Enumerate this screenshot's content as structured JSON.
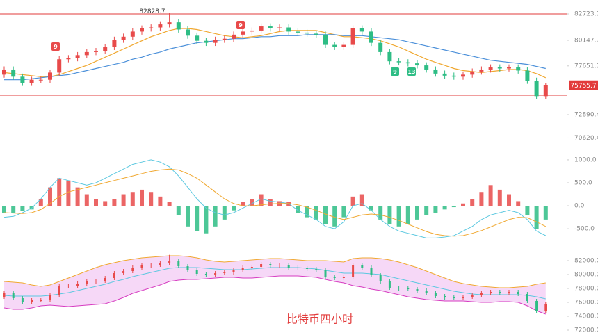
{
  "chart_data": [
    {
      "type": "candlestick",
      "up_color": "#e84a4a",
      "down_color": "#2ebd85",
      "open": [
        76800,
        77300,
        76600,
        76000,
        76300,
        76300,
        77000,
        78300,
        78400,
        78700,
        79000,
        79100,
        79500,
        80200,
        80500,
        81000,
        81300,
        81400,
        81700,
        81900,
        81200,
        80600,
        80100,
        79900,
        80200,
        80300,
        80700,
        81000,
        81100,
        81500,
        81300,
        81400,
        81000,
        80900,
        80800,
        80700,
        79700,
        79500,
        79700,
        81300,
        81000,
        79900,
        79000,
        78100,
        78000,
        77900,
        77700,
        77300,
        76900,
        76700,
        76600,
        76800,
        77100,
        77300,
        77500,
        77400,
        77500,
        77200,
        76200,
        74700
      ],
      "high": [
        77600,
        77600,
        76900,
        76600,
        76600,
        77300,
        78600,
        78700,
        79000,
        79300,
        79400,
        79800,
        80500,
        80800,
        81300,
        81600,
        81700,
        82000,
        82828.7,
        82200,
        81500,
        80900,
        80400,
        80500,
        80600,
        81000,
        81300,
        81400,
        81800,
        81800,
        81700,
        81700,
        81300,
        81200,
        81100,
        81000,
        80000,
        80000,
        81600,
        81600,
        81300,
        80200,
        79300,
        78400,
        78300,
        78200,
        78000,
        77600,
        77200,
        77000,
        77100,
        77400,
        77600,
        77800,
        77800,
        77800,
        77800,
        77500,
        76500,
        76000
      ],
      "low": [
        76500,
        76300,
        75700,
        75700,
        76000,
        76000,
        76700,
        78000,
        78100,
        78400,
        78700,
        78800,
        79200,
        79900,
        80200,
        80700,
        81000,
        81100,
        81400,
        80900,
        80300,
        79800,
        79600,
        79600,
        79900,
        80000,
        80400,
        80700,
        80800,
        81000,
        81000,
        80700,
        80600,
        80500,
        80400,
        79400,
        79200,
        79200,
        79400,
        80700,
        79600,
        78700,
        77800,
        77700,
        77600,
        77400,
        77000,
        76600,
        76400,
        76300,
        76300,
        76500,
        76800,
        77000,
        77100,
        77100,
        76900,
        75900,
        74400,
        74400
      ],
      "close": [
        77300,
        76600,
        76000,
        76300,
        76300,
        77000,
        78300,
        78400,
        78700,
        79000,
        79100,
        79500,
        80200,
        80500,
        81000,
        81300,
        81400,
        81700,
        81900,
        81200,
        80600,
        80100,
        79900,
        80200,
        80300,
        80700,
        81000,
        81100,
        81500,
        81300,
        81400,
        81000,
        80900,
        80800,
        80700,
        79700,
        79500,
        79700,
        81300,
        81000,
        79900,
        79000,
        78100,
        78000,
        77900,
        77700,
        77300,
        76900,
        76700,
        76600,
        76800,
        77100,
        77300,
        77500,
        77400,
        77500,
        77200,
        76200,
        74700,
        75755.7
      ],
      "lines": [
        {
          "color": "#f0a830",
          "values": [
            77000,
            76900,
            76800,
            76700,
            76600,
            76600,
            76800,
            77100,
            77400,
            77700,
            78100,
            78500,
            78900,
            79300,
            79700,
            80100,
            80500,
            80800,
            81100,
            81300,
            81300,
            81200,
            81000,
            80800,
            80600,
            80500,
            80400,
            80500,
            80600,
            80800,
            81000,
            81100,
            81100,
            81100,
            81100,
            80900,
            80700,
            80500,
            80500,
            80400,
            80300,
            80100,
            79800,
            79500,
            79100,
            78700,
            78300,
            78000,
            77700,
            77400,
            77200,
            77100,
            77000,
            77100,
            77200,
            77300,
            77300,
            77200,
            76900,
            76500
          ]
        },
        {
          "color": "#4a8fd9",
          "values": [
            76300,
            76300,
            76300,
            76400,
            76500,
            76600,
            76700,
            76800,
            77000,
            77200,
            77400,
            77600,
            77800,
            78000,
            78300,
            78500,
            78800,
            79000,
            79300,
            79500,
            79700,
            79900,
            80000,
            80100,
            80200,
            80300,
            80300,
            80400,
            80500,
            80500,
            80600,
            80600,
            80600,
            80700,
            80700,
            80700,
            80700,
            80600,
            80600,
            80600,
            80500,
            80400,
            80300,
            80200,
            80000,
            79800,
            79600,
            79400,
            79200,
            79000,
            78800,
            78600,
            78400,
            78200,
            78100,
            78000,
            77900,
            77800,
            77600,
            77400
          ]
        }
      ],
      "hlines": [
        {
          "value": 82723.7,
          "color": "#e23b3b"
        },
        {
          "value": 74790,
          "color": "#e23b3b"
        }
      ],
      "markers": [
        {
          "text": "9",
          "color": "#e84a4a"
        },
        {
          "text": "9",
          "color": "#e84a4a"
        },
        {
          "text": "9",
          "color": "#2ebd85"
        },
        {
          "text": "13",
          "color": "#2ebd85"
        }
      ],
      "ylim": [
        69500,
        84080
      ],
      "yticks": [
        82723.7,
        80147.7,
        77651.7,
        72890.4,
        70620.4
      ]
    },
    {
      "type": "macd",
      "up_color": "#e84a4a",
      "down_color": "#2ebd85",
      "histogram": [
        -150,
        -150,
        -120,
        -80,
        150,
        400,
        600,
        550,
        400,
        250,
        150,
        100,
        150,
        250,
        300,
        350,
        300,
        200,
        80,
        -200,
        -450,
        -550,
        -600,
        -450,
        -300,
        -100,
        80,
        150,
        250,
        150,
        100,
        80,
        -150,
        -250,
        -300,
        -400,
        -450,
        -250,
        200,
        250,
        -100,
        -300,
        -400,
        -450,
        -400,
        -300,
        -200,
        -150,
        -80,
        -30,
        50,
        150,
        300,
        450,
        350,
        250,
        100,
        -200,
        -500,
        -300
      ],
      "lines": [
        {
          "color": "#5bc8e0",
          "values": [
            -250,
            -230,
            -150,
            -50,
            150,
            400,
            600,
            550,
            500,
            450,
            500,
            600,
            700,
            800,
            900,
            950,
            1000,
            950,
            850,
            650,
            400,
            150,
            -50,
            -150,
            -200,
            -150,
            -50,
            50,
            150,
            100,
            80,
            50,
            -100,
            -200,
            -300,
            -450,
            -500,
            -350,
            0,
            50,
            -100,
            -300,
            -450,
            -550,
            -600,
            -650,
            -700,
            -700,
            -680,
            -650,
            -550,
            -450,
            -300,
            -200,
            -150,
            -100,
            -150,
            -300,
            -550,
            -650
          ]
        },
        {
          "color": "#f0a830",
          "values": [
            -150,
            -160,
            -170,
            -150,
            -80,
            50,
            200,
            300,
            350,
            400,
            450,
            500,
            550,
            600,
            650,
            700,
            750,
            780,
            800,
            780,
            700,
            600,
            450,
            300,
            150,
            50,
            0,
            0,
            20,
            40,
            50,
            50,
            20,
            -30,
            -100,
            -180,
            -250,
            -300,
            -250,
            -200,
            -180,
            -200,
            -250,
            -320,
            -400,
            -480,
            -560,
            -620,
            -650,
            -660,
            -650,
            -600,
            -540,
            -460,
            -380,
            -300,
            -250,
            -260,
            -350,
            -450
          ]
        }
      ],
      "ylim": [
        -740,
        1120
      ],
      "yticks": [
        {
          "value": 1000,
          "label": "1000.0"
        },
        {
          "value": 500,
          "label": "500.0"
        },
        {
          "value": 0,
          "label": "0.0"
        },
        {
          "value": -500,
          "label": "-500.0"
        }
      ]
    },
    {
      "type": "bands",
      "title": "比特币四小时",
      "fill": "#f6d8f7",
      "upper_color": "#f0a830",
      "mid_color": "#5bc8e0",
      "lower_color": "#d63bc0",
      "upper": [
        79000,
        78900,
        78800,
        78500,
        78300,
        78500,
        79000,
        79500,
        80000,
        80500,
        81000,
        81400,
        81700,
        82000,
        82200,
        82400,
        82500,
        82600,
        82700,
        82700,
        82600,
        82400,
        82100,
        81900,
        81800,
        81900,
        82000,
        82100,
        82200,
        82300,
        82300,
        82200,
        82100,
        82000,
        82000,
        82000,
        81900,
        81800,
        82300,
        82400,
        82400,
        82300,
        82100,
        81800,
        81400,
        81000,
        80500,
        80000,
        79500,
        79000,
        78700,
        78500,
        78300,
        78200,
        78100,
        78100,
        78200,
        78300,
        78600,
        78800
      ],
      "mid": [
        77000,
        76900,
        76900,
        76900,
        76900,
        77000,
        77200,
        77400,
        77700,
        78000,
        78300,
        78600,
        79000,
        79300,
        79700,
        80000,
        80300,
        80600,
        80900,
        81000,
        81000,
        81000,
        80900,
        80800,
        80700,
        80700,
        80700,
        80800,
        80900,
        81000,
        81000,
        81000,
        81000,
        80900,
        80800,
        80600,
        80400,
        80200,
        80200,
        80200,
        80100,
        80000,
        79700,
        79400,
        79100,
        78800,
        78500,
        78200,
        77900,
        77600,
        77400,
        77200,
        77100,
        77100,
        77100,
        77100,
        77100,
        77000,
        76800,
        76500
      ],
      "lower": [
        75200,
        75000,
        75000,
        75200,
        75500,
        75600,
        75500,
        75400,
        75500,
        75600,
        75700,
        75800,
        76200,
        76700,
        77300,
        77700,
        78100,
        78500,
        79000,
        79200,
        79300,
        79300,
        79400,
        79500,
        79600,
        79600,
        79500,
        79500,
        79600,
        79700,
        79800,
        79800,
        79800,
        79700,
        79600,
        79300,
        79000,
        78800,
        78400,
        78200,
        77900,
        77700,
        77400,
        77100,
        76800,
        76600,
        76400,
        76300,
        76200,
        76200,
        76200,
        76100,
        76000,
        76000,
        76100,
        76100,
        76000,
        75500,
        74800,
        74300
      ],
      "ylim": [
        71500,
        83000
      ],
      "yticks": [
        {
          "value": 82000,
          "label": "82000.0"
        },
        {
          "value": 80000,
          "label": "80000.0"
        },
        {
          "value": 78000,
          "label": "78000.0"
        },
        {
          "value": 76000,
          "label": "76000.0"
        },
        {
          "value": 74000,
          "label": "74000.0"
        },
        {
          "value": 72000,
          "label": "72000.0"
        }
      ]
    }
  ]
}
